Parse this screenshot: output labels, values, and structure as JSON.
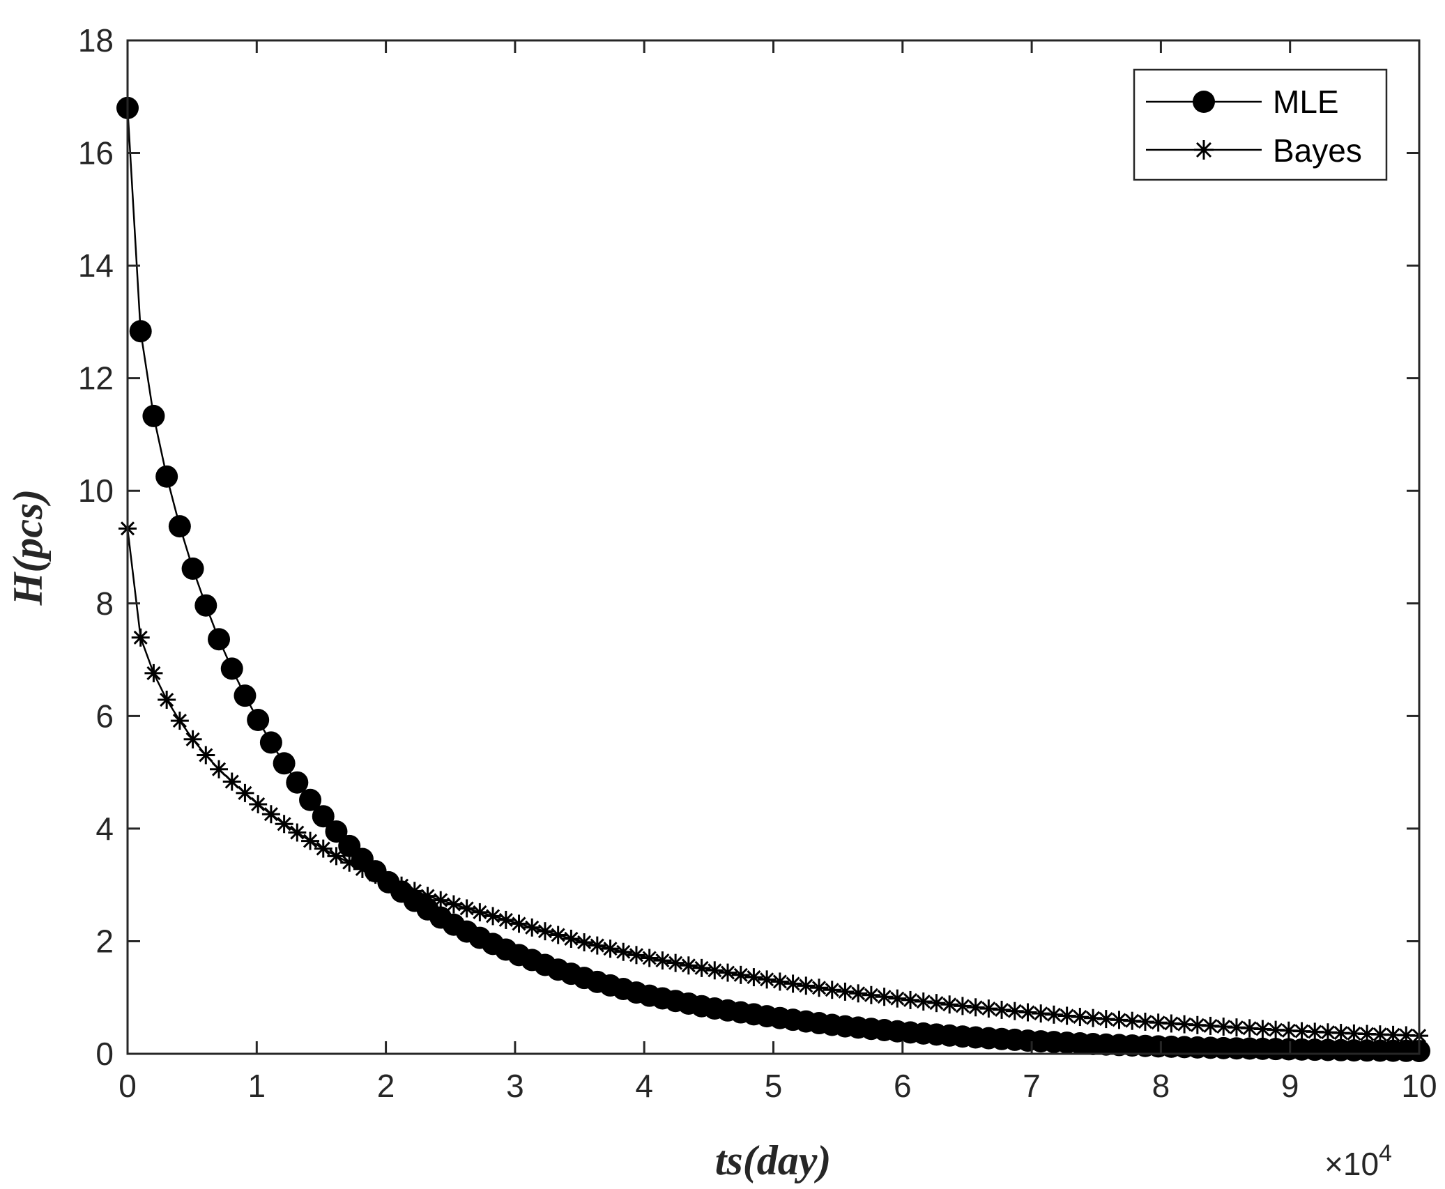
{
  "chart_data": {
    "type": "line",
    "xlabel": "ts(day)",
    "ylabel": "H(pcs)",
    "x_exponent_label": {
      "base": "×10",
      "exponent": "4"
    },
    "xlim": [
      0,
      10
    ],
    "ylim": [
      0,
      18
    ],
    "x_ticks": [
      "0",
      "1",
      "2",
      "3",
      "4",
      "5",
      "6",
      "7",
      "8",
      "9",
      "10"
    ],
    "y_ticks": [
      "0",
      "2",
      "4",
      "6",
      "8",
      "10",
      "12",
      "14",
      "16",
      "18"
    ],
    "grid": false,
    "legend_position": "top-right",
    "legend": [
      "MLE",
      "Bayes"
    ],
    "series": [
      {
        "name": "MLE",
        "marker": "filled-circle",
        "color": "#000000",
        "x": [
          0,
          0.1,
          0.2,
          0.3,
          0.4,
          0.5,
          0.6,
          0.7,
          0.8,
          0.9,
          1.0,
          1.1,
          1.2,
          1.3,
          1.4,
          1.5,
          1.6,
          1.7,
          1.8,
          1.9,
          2.0,
          2.2,
          2.4,
          2.6,
          2.8,
          3.0,
          3.3,
          3.6,
          4.0,
          4.5,
          5.0,
          5.5,
          6.0,
          6.5,
          7.0,
          7.5,
          8.0,
          8.5,
          9.0,
          9.5,
          10.0
        ],
        "y": [
          16.8,
          12.85,
          11.35,
          10.28,
          9.4,
          8.65,
          8.0,
          7.4,
          6.88,
          6.4,
          5.97,
          5.57,
          5.2,
          4.86,
          4.55,
          4.26,
          3.99,
          3.73,
          3.5,
          3.28,
          3.08,
          2.75,
          2.45,
          2.2,
          1.98,
          1.78,
          1.52,
          1.3,
          1.05,
          0.82,
          0.65,
          0.5,
          0.39,
          0.3,
          0.23,
          0.17,
          0.13,
          0.1,
          0.08,
          0.06,
          0.05
        ]
      },
      {
        "name": "Bayes",
        "marker": "asterisk",
        "color": "#000000",
        "x": [
          0,
          0.1,
          0.2,
          0.3,
          0.4,
          0.5,
          0.6,
          0.7,
          0.8,
          0.9,
          1.0,
          1.2,
          1.4,
          1.6,
          1.8,
          2.0,
          2.3,
          2.6,
          3.0,
          3.5,
          4.0,
          4.5,
          5.0,
          5.5,
          6.0,
          6.5,
          7.0,
          7.5,
          8.0,
          8.5,
          9.0,
          9.5,
          10.0
        ],
        "y": [
          9.33,
          7.4,
          6.77,
          6.3,
          5.93,
          5.6,
          5.32,
          5.07,
          4.85,
          4.65,
          4.45,
          4.1,
          3.8,
          3.53,
          3.3,
          3.1,
          2.82,
          2.6,
          2.33,
          2.0,
          1.72,
          1.5,
          1.3,
          1.12,
          0.97,
          0.84,
          0.73,
          0.63,
          0.55,
          0.48,
          0.41,
          0.36,
          0.32
        ]
      }
    ]
  }
}
